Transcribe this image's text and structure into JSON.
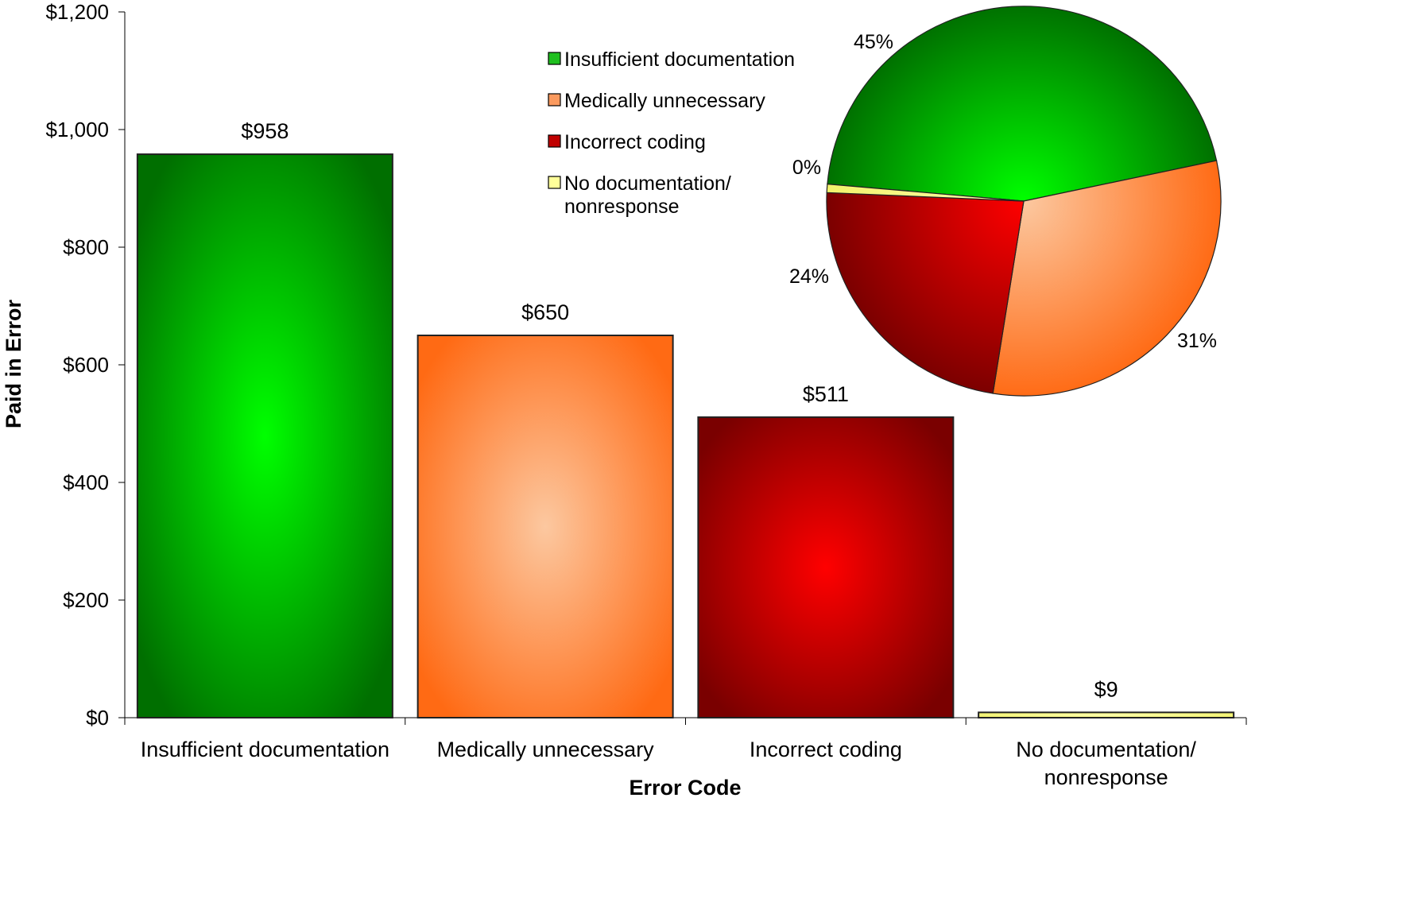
{
  "chart_data": [
    {
      "type": "bar",
      "categories": [
        [
          "Insufficient documentation"
        ],
        [
          "Medically unnecessary"
        ],
        [
          "Incorrect coding"
        ],
        [
          "No documentation/",
          "nonresponse"
        ]
      ],
      "values": [
        958,
        650,
        511,
        9
      ],
      "data_labels": [
        "$958",
        "$650",
        "$511",
        "$9"
      ],
      "xlabel": "Error Code",
      "ylabel": "Paid in Error",
      "ylim": [
        0,
        1200
      ],
      "yticks": [
        0,
        200,
        400,
        600,
        800,
        1000,
        1200
      ],
      "ytick_labels": [
        "$0",
        "$200",
        "$400",
        "$600",
        "$800",
        "$1,000",
        "$1,200"
      ],
      "grid": false
    },
    {
      "type": "pie",
      "labels": [
        "Insufficient documentation",
        "Medically unnecessary",
        "Incorrect coding",
        "No documentation/ nonresponse"
      ],
      "values": [
        45,
        31,
        24,
        0
      ],
      "data_labels": [
        "45%",
        "31%",
        "24%",
        "0%"
      ],
      "legend": {
        "placement": "top-center",
        "entries": [
          [
            "Insufficient documentation"
          ],
          [
            "Medically unnecessary"
          ],
          [
            "Incorrect coding"
          ],
          [
            "No documentation/",
            "nonresponse"
          ]
        ]
      }
    }
  ],
  "colors": {
    "insufficient": {
      "edge": "#006f00",
      "center": "#00ff00",
      "swatch": "#1fbf1f"
    },
    "unnecessary": {
      "edge": "#ff6a14",
      "center": "#fcc8a0",
      "swatch": "#fb9a5e"
    },
    "incorrect": {
      "edge": "#7a0000",
      "center": "#ff0000",
      "swatch": "#c00000"
    },
    "none": {
      "edge": "#f2f26a",
      "center": "#ffffb0",
      "swatch": "#ffff99"
    }
  }
}
